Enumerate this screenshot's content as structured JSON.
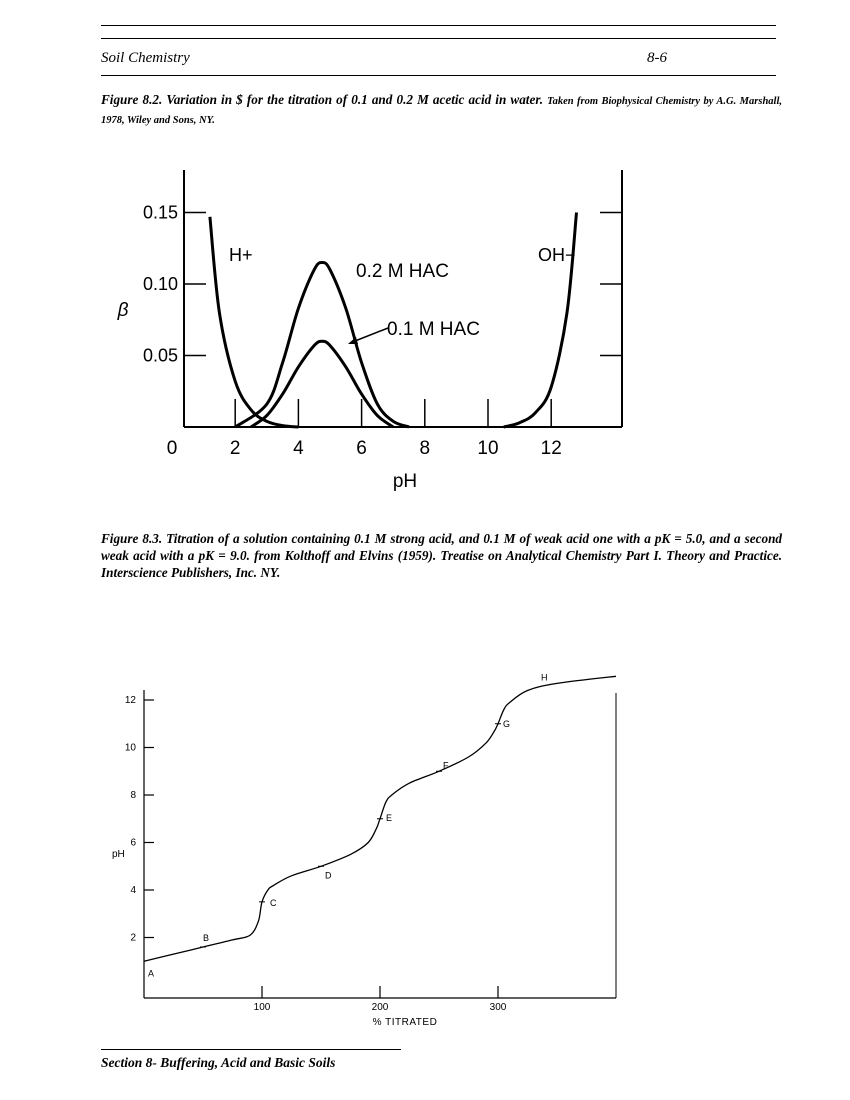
{
  "header": {
    "title": "Soil Chemistry",
    "page": "8-6"
  },
  "figure_8_2": {
    "caption_main": "Figure 8.2.  Variation in $ for the titration of 0.1 and 0.2 M acetic acid in water.",
    "caption_source": "Taken from Biophysical Chemistry by A.G. Marshall, 1978, Wiley and Sons, NY."
  },
  "figure_8_3": {
    "caption": "Figure 8.3. Titration of a solution containing 0.1 M  strong acid,  and 0.1 M of  weak acid one  with a pK = 5.0, and a second weak acid with a pK = 9.0.  from Kolthoff and  Elvins (1959).  Treatise on Analytical Chemistry Part I. Theory and Practice. Interscience Publishers, Inc. NY."
  },
  "footer": {
    "text": "Section 8- Buffering, Acid and Basic Soils"
  },
  "chart_data": [
    {
      "type": "line",
      "xlabel": "pH",
      "ylabel": "β",
      "xlim": [
        0,
        14
      ],
      "ylim": [
        0,
        0.17
      ],
      "x_ticks": [
        0,
        2,
        4,
        6,
        8,
        10,
        12
      ],
      "y_ticks": [
        "0.15",
        "0.10",
        "0.05"
      ],
      "grid": false,
      "series": [
        {
          "name": "H+",
          "x": [
            1.2,
            1.5,
            2.0,
            2.5,
            3.0,
            3.5,
            4.0
          ],
          "y": [
            0.147,
            0.08,
            0.032,
            0.012,
            0.004,
            0.001,
            0.0
          ]
        },
        {
          "name": "0.2 M HAC",
          "x": [
            2.0,
            3.0,
            3.5,
            4.0,
            4.5,
            4.75,
            5.0,
            5.5,
            6.0,
            6.5,
            7.0,
            7.5
          ],
          "y": [
            0.0,
            0.016,
            0.045,
            0.083,
            0.11,
            0.115,
            0.11,
            0.083,
            0.045,
            0.016,
            0.004,
            0.0
          ]
        },
        {
          "name": "0.1 M HAC",
          "x": [
            2.5,
            3.0,
            3.5,
            4.0,
            4.5,
            4.75,
            5.0,
            5.5,
            6.0,
            6.5,
            7.0
          ],
          "y": [
            0.0,
            0.008,
            0.023,
            0.042,
            0.057,
            0.06,
            0.057,
            0.042,
            0.023,
            0.008,
            0.0
          ]
        },
        {
          "name": "OH−",
          "x": [
            10.5,
            11.0,
            11.5,
            12.0,
            12.5,
            12.8
          ],
          "y": [
            0.0,
            0.003,
            0.01,
            0.028,
            0.08,
            0.15
          ]
        }
      ]
    },
    {
      "type": "line",
      "xlabel": "% TITRATED",
      "ylabel": "pH",
      "xlim": [
        0,
        400
      ],
      "ylim": [
        0,
        14
      ],
      "x_ticks": [
        100,
        200,
        300
      ],
      "y_ticks": [
        2,
        4,
        6,
        8,
        10,
        12
      ],
      "grid": false,
      "point_labels": [
        "A",
        "B",
        "C",
        "D",
        "E",
        "F",
        "G",
        "H"
      ],
      "series": [
        {
          "x": [
            0,
            25,
            50,
            75,
            90,
            97,
            100,
            105,
            110,
            125,
            150,
            175,
            190,
            197,
            200,
            205,
            210,
            225,
            250,
            275,
            290,
            297,
            300,
            305,
            310,
            325,
            350,
            400
          ],
          "y": [
            1.0,
            1.3,
            1.6,
            1.9,
            2.1,
            2.7,
            3.5,
            4.0,
            4.2,
            4.6,
            5.0,
            5.5,
            6.0,
            6.6,
            7.0,
            7.7,
            8.0,
            8.5,
            9.0,
            9.6,
            10.2,
            10.7,
            11.0,
            11.6,
            11.9,
            12.4,
            12.7,
            13.0
          ]
        }
      ]
    }
  ]
}
